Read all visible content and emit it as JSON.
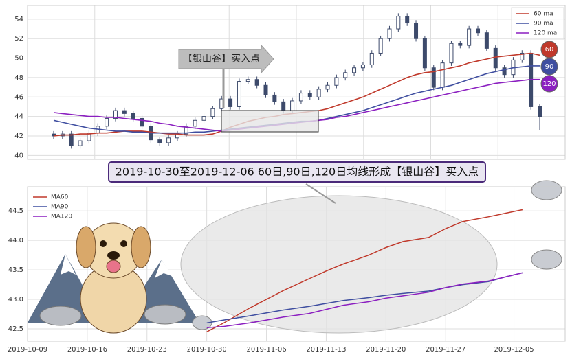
{
  "chart_data": [
    {
      "type": "candlestick",
      "open": [
        42.2,
        42.0,
        42.2,
        41.0,
        41.5,
        42.3,
        43.0,
        43.8,
        44.6,
        44.3,
        43.8,
        43.0,
        41.6,
        41.3,
        41.8,
        42.2,
        43.0,
        43.6,
        44.0,
        44.8,
        45.8,
        45.0,
        47.6,
        47.8,
        47.2,
        46.2,
        45.5,
        44.6,
        45.6,
        46.4,
        46.0,
        46.8,
        47.2,
        48.0,
        48.5,
        49.0,
        49.3,
        50.5,
        52.0,
        53.0,
        54.3,
        53.6,
        52.0,
        49.0,
        47.0,
        49.5,
        51.5,
        51.3,
        53.0,
        52.6,
        51.0,
        49.0,
        48.3,
        49.8,
        50.5,
        45.0
      ],
      "high": [
        42.5,
        42.5,
        42.5,
        41.8,
        42.6,
        43.3,
        44.1,
        44.9,
        44.9,
        44.6,
        44.1,
        43.3,
        41.9,
        42.1,
        42.5,
        43.3,
        43.9,
        44.3,
        45.1,
        46.1,
        46.1,
        47.9,
        48.1,
        48.1,
        47.5,
        46.5,
        45.8,
        45.9,
        46.7,
        46.7,
        47.1,
        47.5,
        48.3,
        48.8,
        49.3,
        49.6,
        50.8,
        52.3,
        53.3,
        54.6,
        54.6,
        53.9,
        52.3,
        49.3,
        49.8,
        51.8,
        51.8,
        53.3,
        53.3,
        52.9,
        51.3,
        49.3,
        50.1,
        50.8,
        50.8,
        45.3
      ],
      "low": [
        41.7,
        41.7,
        40.7,
        40.7,
        41.2,
        42.0,
        42.7,
        43.5,
        44.0,
        43.5,
        42.7,
        41.3,
        41.0,
        41.0,
        41.5,
        41.9,
        42.7,
        43.3,
        43.7,
        44.5,
        44.7,
        44.7,
        47.3,
        46.9,
        45.9,
        45.2,
        44.3,
        44.3,
        45.3,
        45.7,
        45.7,
        46.5,
        46.9,
        47.7,
        48.2,
        48.7,
        49.0,
        50.2,
        51.7,
        52.7,
        53.3,
        51.7,
        48.7,
        46.7,
        46.7,
        49.2,
        51.0,
        51.0,
        52.3,
        50.7,
        48.7,
        48.0,
        48.0,
        49.5,
        44.7,
        42.6
      ],
      "close": [
        42.0,
        42.2,
        41.0,
        41.5,
        42.3,
        43.0,
        43.8,
        44.6,
        44.3,
        43.8,
        43.0,
        41.6,
        41.3,
        41.8,
        42.2,
        43.0,
        43.6,
        44.0,
        44.8,
        45.8,
        45.0,
        47.6,
        47.8,
        47.2,
        46.2,
        45.5,
        44.6,
        45.6,
        46.4,
        46.0,
        46.8,
        47.2,
        48.0,
        48.5,
        49.0,
        49.3,
        50.5,
        52.0,
        53.0,
        54.3,
        53.6,
        52.0,
        49.0,
        47.0,
        49.5,
        51.5,
        51.3,
        53.0,
        52.6,
        51.0,
        49.0,
        48.3,
        49.8,
        50.5,
        45.0,
        44.0
      ],
      "up_color": "#ffffff",
      "down_color": "#3d4a6b",
      "edge_color": "#3d4a6b",
      "series": [
        {
          "name": "60 ma",
          "color": "#c0392b",
          "values": [
            42.0,
            42.1,
            42.1,
            42.2,
            42.2,
            42.3,
            42.3,
            42.4,
            42.5,
            42.5,
            42.5,
            42.4,
            42.3,
            42.2,
            42.2,
            42.1,
            42.1,
            42.1,
            42.2,
            42.5,
            42.9,
            43.2,
            43.5,
            43.7,
            43.9,
            44.0,
            44.2,
            44.3,
            44.4,
            44.5,
            44.6,
            44.8,
            45.1,
            45.4,
            45.7,
            46.0,
            46.4,
            46.8,
            47.2,
            47.6,
            48.0,
            48.3,
            48.5,
            48.6,
            48.8,
            49.0,
            49.2,
            49.5,
            49.7,
            49.9,
            50.1,
            50.2,
            50.3,
            50.4,
            50.5,
            50.3
          ]
        },
        {
          "name": "90 ma",
          "color": "#3f4ea0",
          "values": [
            43.6,
            43.4,
            43.2,
            43.0,
            42.8,
            42.7,
            42.6,
            42.5,
            42.5,
            42.4,
            42.4,
            42.3,
            42.3,
            42.3,
            42.3,
            42.3,
            42.4,
            42.4,
            42.5,
            42.6,
            42.7,
            42.8,
            42.9,
            43.0,
            43.1,
            43.2,
            43.3,
            43.4,
            43.5,
            43.5,
            43.6,
            43.8,
            44.0,
            44.2,
            44.4,
            44.6,
            44.9,
            45.2,
            45.5,
            45.8,
            46.1,
            46.4,
            46.6,
            46.8,
            47.0,
            47.2,
            47.5,
            47.8,
            48.1,
            48.4,
            48.6,
            48.8,
            49.0,
            49.1,
            49.2,
            49.2
          ]
        },
        {
          "name": "120 ma",
          "color": "#8b1fc0",
          "values": [
            44.4,
            44.3,
            44.2,
            44.1,
            44.0,
            44.0,
            43.9,
            43.9,
            43.8,
            43.7,
            43.6,
            43.5,
            43.3,
            43.2,
            43.0,
            42.9,
            42.8,
            42.7,
            42.6,
            42.5,
            42.6,
            42.7,
            42.8,
            42.9,
            43.0,
            43.1,
            43.2,
            43.3,
            43.4,
            43.5,
            43.6,
            43.7,
            43.9,
            44.0,
            44.2,
            44.4,
            44.6,
            44.8,
            45.0,
            45.2,
            45.4,
            45.6,
            45.8,
            46.0,
            46.2,
            46.4,
            46.6,
            46.8,
            47.0,
            47.2,
            47.4,
            47.5,
            47.6,
            47.7,
            47.8,
            47.8
          ]
        }
      ],
      "ylim": [
        39.6,
        55.4
      ],
      "yticks": [
        40,
        42,
        44,
        46,
        48,
        50,
        52,
        54
      ],
      "grid": true,
      "legend": "upper right",
      "annotation": "【银山谷】买入点",
      "badges": [
        {
          "label": "60",
          "color": "#c0392b"
        },
        {
          "label": "90",
          "color": "#3f4ea0"
        },
        {
          "label": "120",
          "color": "#8b1fc0"
        }
      ]
    },
    {
      "type": "line",
      "x": [
        "2019-10-30",
        "2019-11-01",
        "2019-11-04",
        "2019-11-06",
        "2019-11-08",
        "2019-11-11",
        "2019-11-13",
        "2019-11-15",
        "2019-11-18",
        "2019-11-20",
        "2019-11-22",
        "2019-11-25",
        "2019-11-27",
        "2019-11-29",
        "2019-12-02",
        "2019-12-04",
        "2019-12-06"
      ],
      "series": [
        {
          "name": "MA60",
          "color": "#c0392b",
          "values": [
            42.45,
            42.6,
            42.85,
            43.0,
            43.15,
            43.35,
            43.48,
            43.6,
            43.75,
            43.88,
            43.98,
            44.05,
            44.2,
            44.32,
            44.4,
            44.46,
            44.52
          ]
        },
        {
          "name": "MA90",
          "color": "#3f4ea0",
          "values": [
            42.6,
            42.65,
            42.72,
            42.77,
            42.82,
            42.88,
            42.93,
            42.98,
            43.03,
            43.07,
            43.1,
            43.14,
            43.2,
            43.25,
            43.3,
            43.38,
            43.45
          ]
        },
        {
          "name": "MA120",
          "color": "#8b1fc0",
          "values": [
            42.52,
            42.54,
            42.6,
            42.65,
            42.7,
            42.76,
            42.83,
            42.9,
            42.96,
            43.02,
            43.06,
            43.12,
            43.2,
            43.26,
            43.31,
            43.38,
            43.45
          ]
        }
      ],
      "xlim": [
        "2019-10-09",
        "2019-12-11"
      ],
      "xticks": [
        "2019-10-09",
        "2019-10-16",
        "2019-10-23",
        "2019-10-30",
        "2019-11-06",
        "2019-11-13",
        "2019-11-20",
        "2019-11-27",
        "2019-12-05"
      ],
      "ylim": [
        42.29,
        44.91
      ],
      "yticks": [
        42.5,
        {
          "value": 43.0,
          "label": "43.0"
        },
        43.5,
        {
          "value": 44.0,
          "label": "44.0"
        },
        44.5
      ],
      "grid": true,
      "legend": "upper left",
      "annotation": "2019-10-30至2019-12-06 60日,90日,120日均线形成【银山谷】买入点"
    }
  ]
}
